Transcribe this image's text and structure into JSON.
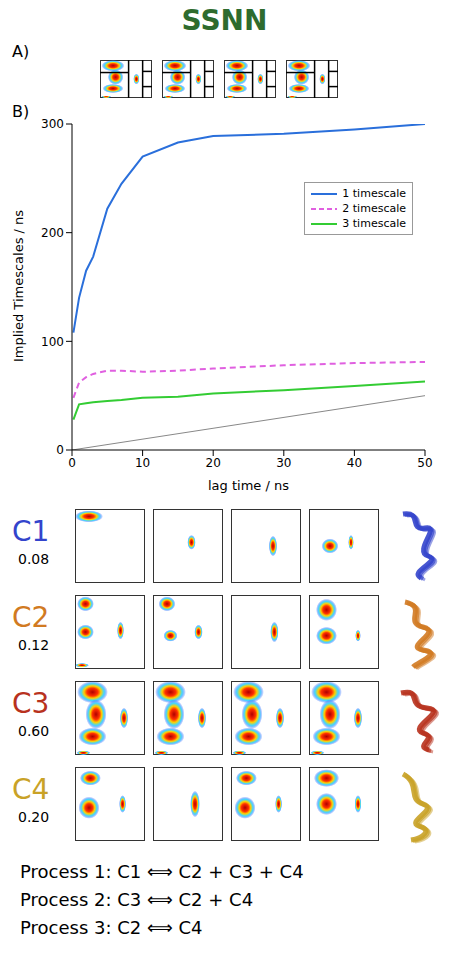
{
  "title": "SSNN",
  "panel_labels": [
    "A)",
    "B)"
  ],
  "chart_data": {
    "type": "line",
    "xlabel": "lag time / ns",
    "ylabel": "Implied Timescales / ns",
    "x": [
      0.2,
      1,
      2,
      3,
      5,
      7,
      10,
      15,
      20,
      30,
      40,
      50
    ],
    "series": [
      {
        "name": "1 timescale",
        "color": "#2a6fdb",
        "line_style": "solid",
        "values": [
          108,
          140,
          165,
          178,
          222,
          245,
          270,
          283,
          289,
          291,
          295,
          300
        ]
      },
      {
        "name": "2 timescale",
        "color": "#e060e0",
        "line_style": "dashed",
        "values": [
          48,
          62,
          67,
          70,
          73,
          73,
          72,
          73,
          75,
          78,
          80,
          81
        ]
      },
      {
        "name": "3 timescale",
        "color": "#33cc33",
        "line_style": "solid",
        "values": [
          28,
          42,
          43,
          44,
          45,
          46,
          48,
          49,
          52,
          55,
          59,
          63
        ]
      }
    ],
    "xlim": [
      0,
      50
    ],
    "ylim": [
      0,
      300
    ],
    "xticks": [
      0,
      10,
      20,
      30,
      40,
      50
    ],
    "yticks": [
      0,
      100,
      200,
      300
    ],
    "legend": "upper right",
    "reference_line": {
      "x": [
        0,
        50
      ],
      "y": [
        0,
        50
      ],
      "color": "#888888"
    }
  },
  "clusters": [
    {
      "label": "C1",
      "weight": 0.08,
      "color": "#3344cc"
    },
    {
      "label": "C2",
      "weight": 0.12,
      "color": "#d17a22"
    },
    {
      "label": "C3",
      "weight": 0.6,
      "color": "#b8321e"
    },
    {
      "label": "C4",
      "weight": 0.2,
      "color": "#c9a227"
    }
  ],
  "processes": [
    "Process 1: C1 ⟺ C2 + C3 + C4",
    "Process 2: C3 ⟺ C2 + C4",
    "Process 3: C2 ⟺ C4"
  ]
}
